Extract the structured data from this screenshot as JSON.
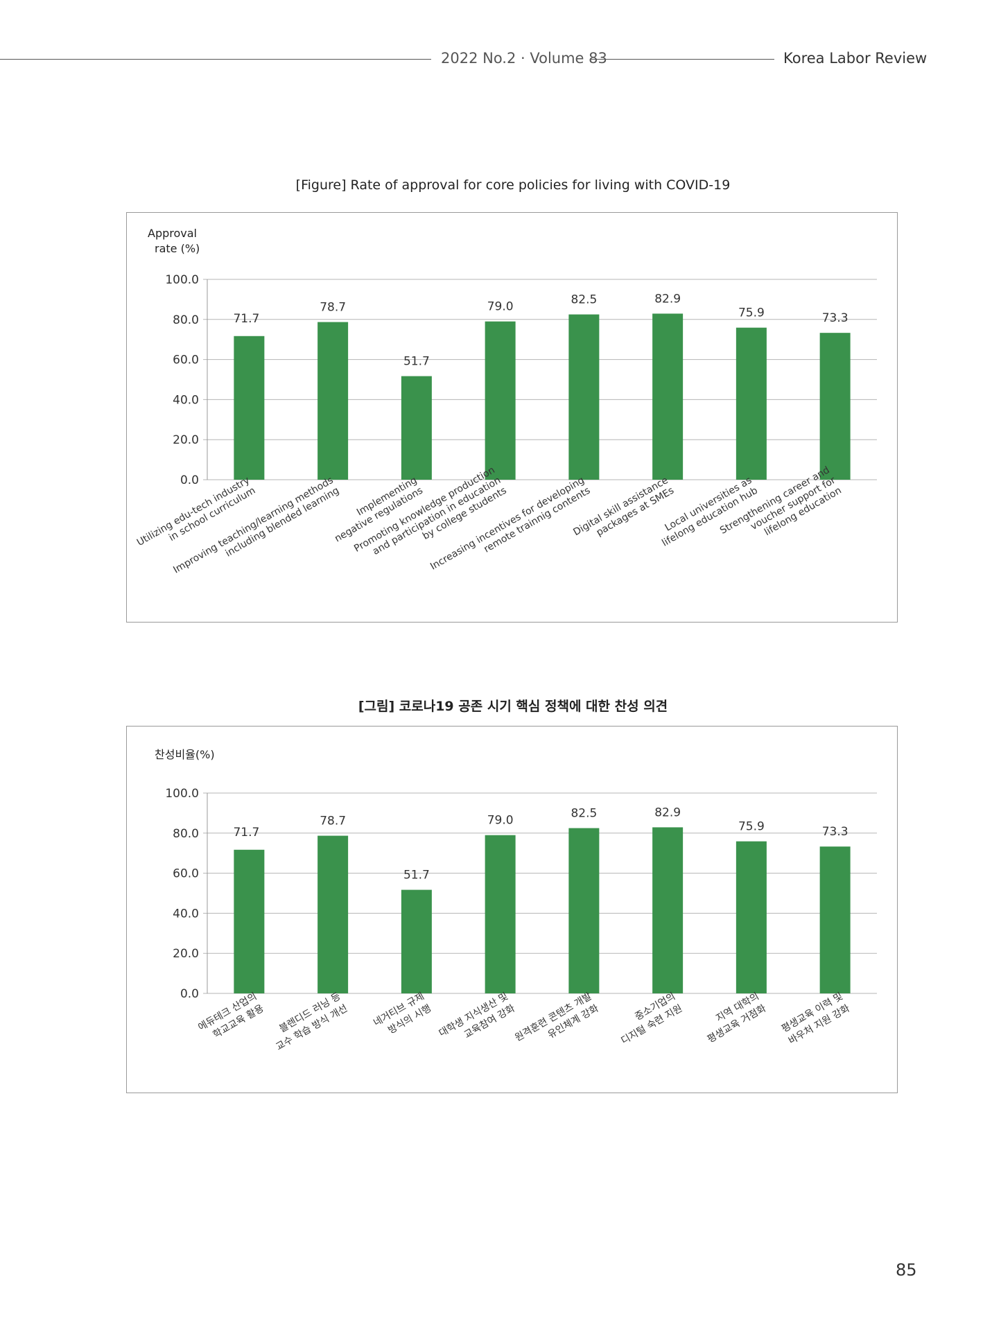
{
  "header": {
    "issue": "2022 No.2 · Volume 83",
    "journal": "Korea Labor Review"
  },
  "page_number": "85",
  "chart_data": [
    {
      "type": "bar",
      "title": "[Figure] Rate of approval for core policies for living with COVID-19",
      "ylabel": [
        "Approval",
        "rate (%)"
      ],
      "ylim": [
        0,
        100
      ],
      "yticks": [
        "0.0",
        "20.0",
        "40.0",
        "60.0",
        "80.0",
        "100.0"
      ],
      "grid": true,
      "color": "#3a924c",
      "categories": [
        [
          "Utilizing edu-tech industry",
          "in school curriculum"
        ],
        [
          "Improving teaching/learning methods",
          "including blended learning"
        ],
        [
          "Implementing",
          "negative regulations"
        ],
        [
          "Promoting knowledge production",
          "and participation in education",
          "by college students"
        ],
        [
          "Increasing incentives for developing",
          "remote trainnig contents"
        ],
        [
          "Digital skill assistance",
          "packages at SMEs"
        ],
        [
          "Local universities as",
          "lifelong education hub"
        ],
        [
          "Strengthening career and",
          "voucher support for",
          "lifelong education"
        ]
      ],
      "values": [
        71.7,
        78.7,
        51.7,
        79.0,
        82.5,
        82.9,
        75.9,
        73.3
      ],
      "value_labels": [
        "71.7",
        "78.7",
        "51.7",
        "79.0",
        "82.5",
        "82.9",
        "75.9",
        "73.3"
      ]
    },
    {
      "type": "bar",
      "title": "[그림] 코로나19 공존 시기 핵심 정책에 대한 찬성 의견",
      "ylabel": [
        "찬성비율(%)"
      ],
      "ylim": [
        0,
        100
      ],
      "yticks": [
        "0.0",
        "20.0",
        "40.0",
        "60.0",
        "80.0",
        "100.0"
      ],
      "grid": true,
      "color": "#3a924c",
      "categories": [
        [
          "에듀테크 산업의",
          "학교교육 활용"
        ],
        [
          "블렌디드 러닝 등",
          "교수 학습 방식 개선"
        ],
        [
          "네거티브 규제",
          "방식의 시행"
        ],
        [
          "대학생 지식생산 및",
          "교육참여 강화"
        ],
        [
          "원격훈련 콘텐츠 개발",
          "유인체계 강화"
        ],
        [
          "중소기업의",
          "디지털 숙련 지원"
        ],
        [
          "지역 대학의",
          "평생교육 거점화"
        ],
        [
          "평생교육 이력 및",
          "바우처 지원 강화"
        ]
      ],
      "values": [
        71.7,
        78.7,
        51.7,
        79.0,
        82.5,
        82.9,
        75.9,
        73.3
      ],
      "value_labels": [
        "71.7",
        "78.7",
        "51.7",
        "79.0",
        "82.5",
        "82.9",
        "75.9",
        "73.3"
      ]
    }
  ]
}
